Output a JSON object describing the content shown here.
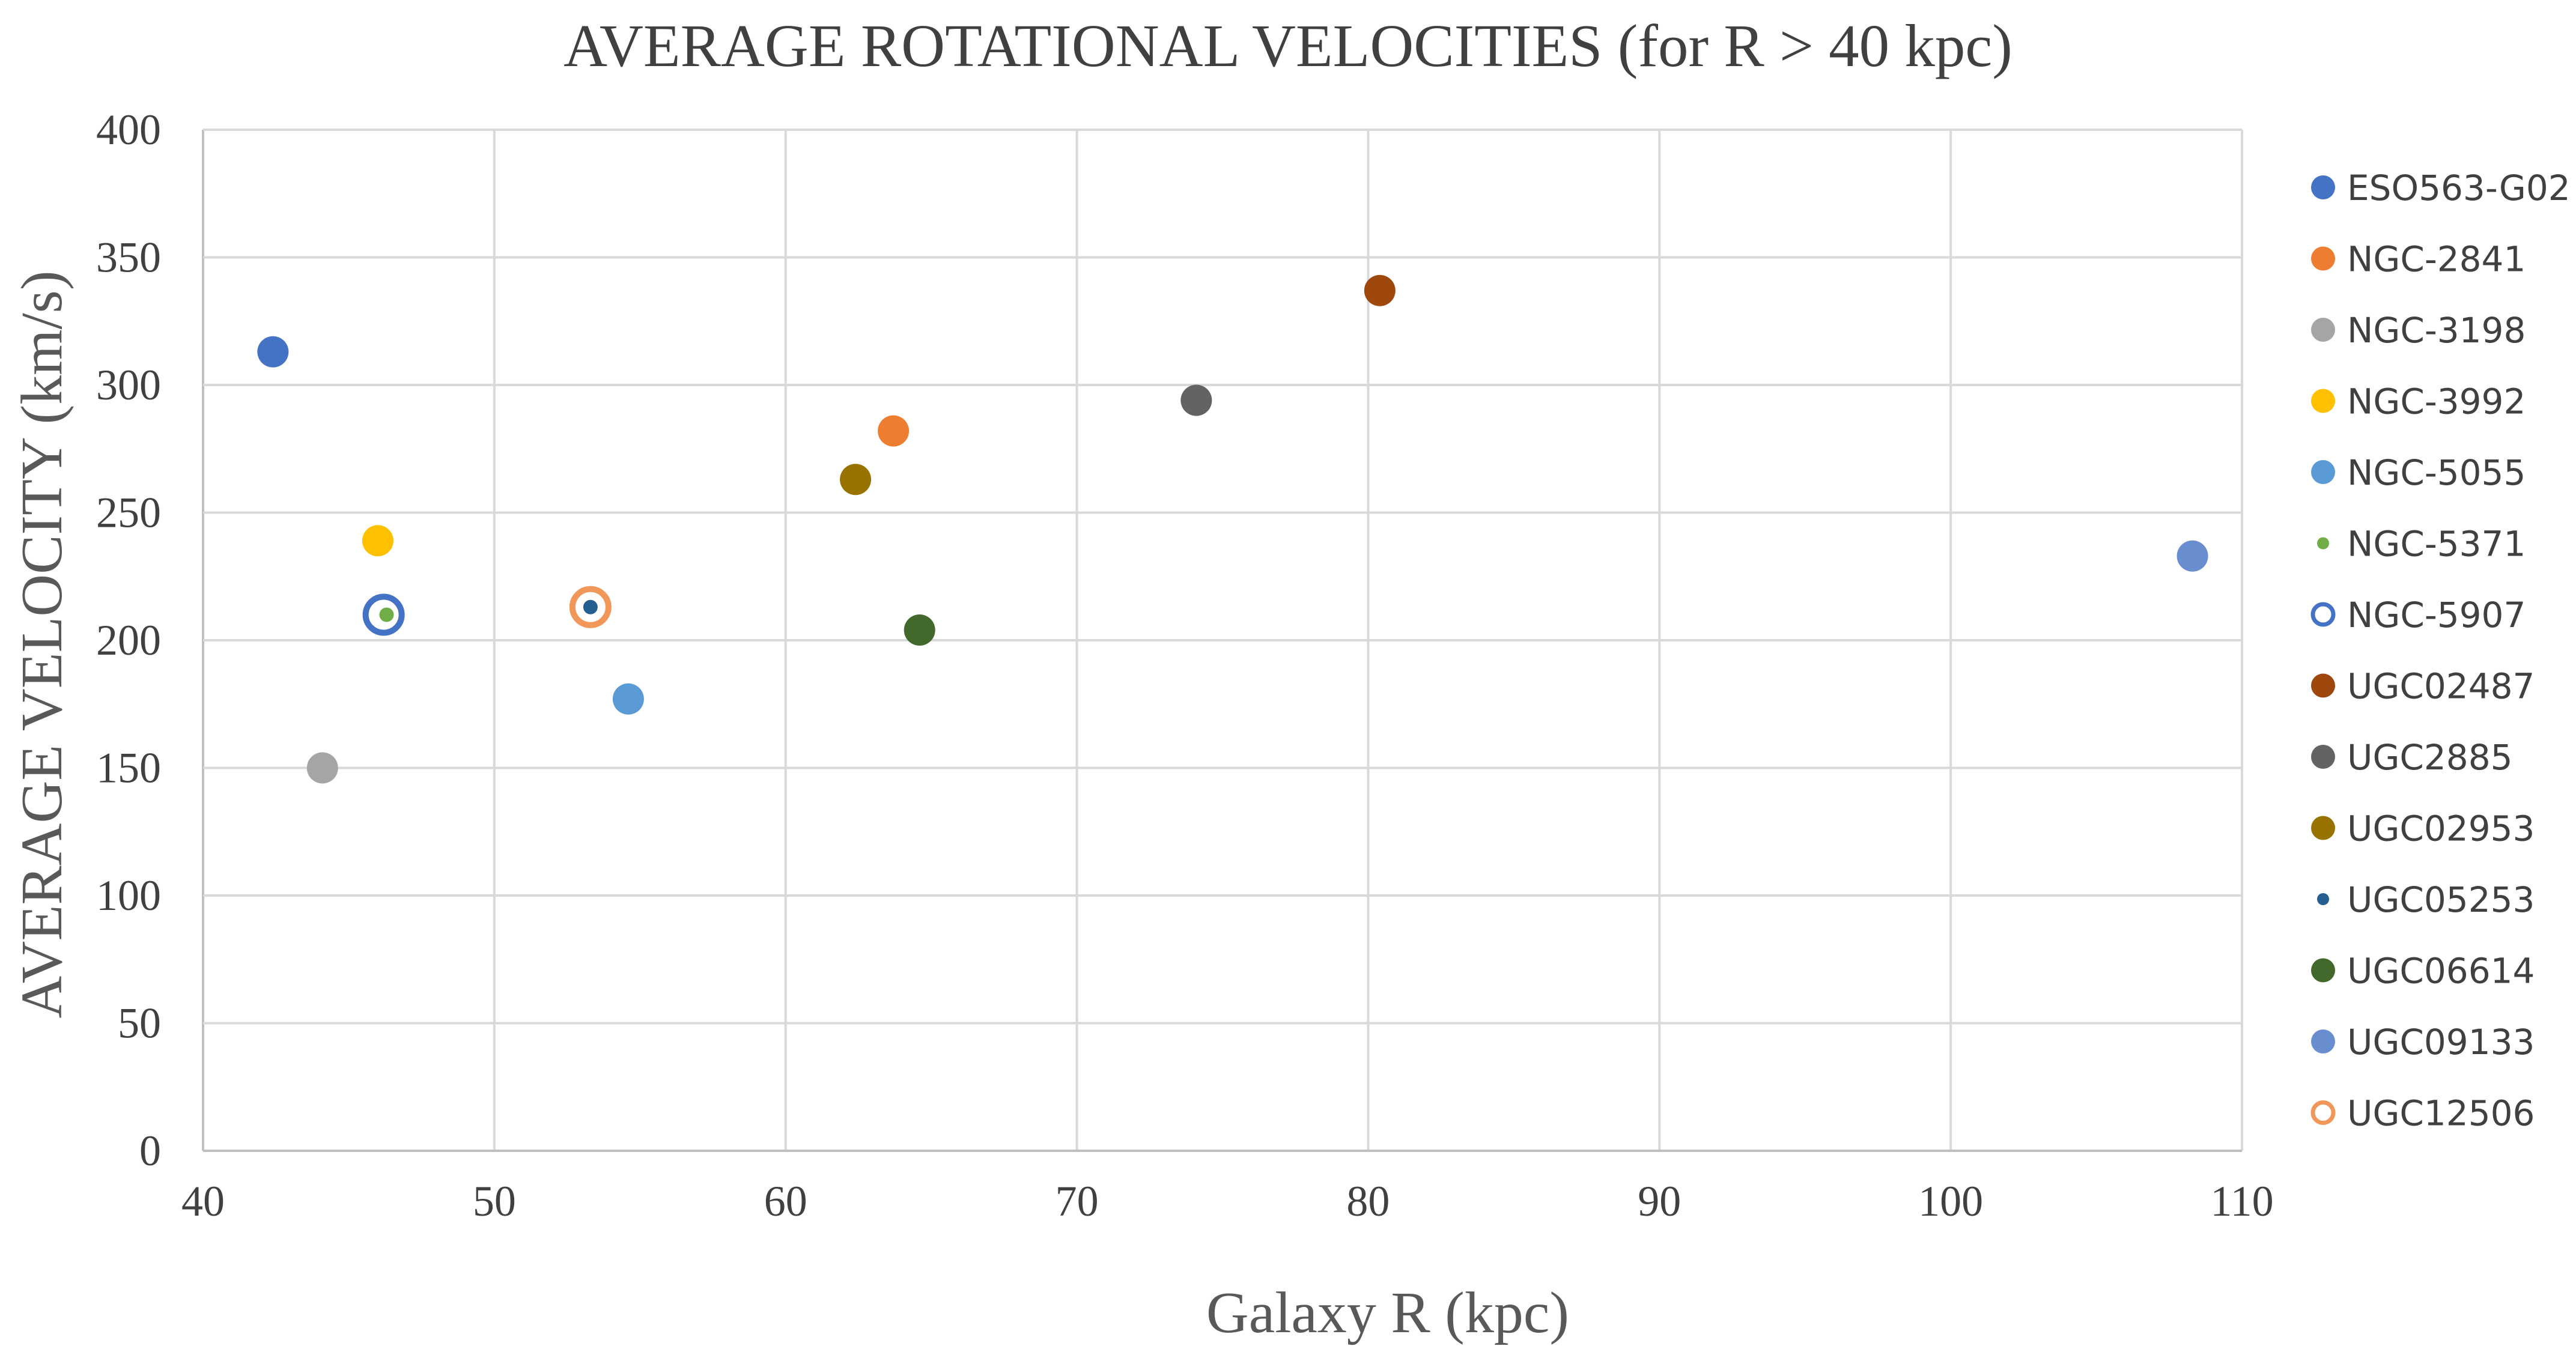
{
  "chart_data": {
    "type": "scatter",
    "title": "AVERAGE ROTATIONAL VELOCITIES (for R > 40 kpc)",
    "xlabel": "Galaxy R (kpc)",
    "ylabel": "AVERAGE VELOCITY (km/s)",
    "xlim": [
      40,
      110
    ],
    "ylim": [
      0,
      400
    ],
    "xticks": [
      40,
      50,
      60,
      70,
      80,
      90,
      100,
      110
    ],
    "yticks": [
      0,
      50,
      100,
      150,
      200,
      250,
      300,
      350,
      400
    ],
    "grid": true,
    "legend_position": "right",
    "series": [
      {
        "name": "ESO563-G02",
        "x": 42.4,
        "y": 313,
        "color": "#4472C4",
        "marker": "filled",
        "marker_size": "large"
      },
      {
        "name": "NGC-2841",
        "x": 63.7,
        "y": 282,
        "color": "#ED7D31",
        "marker": "filled",
        "marker_size": "large"
      },
      {
        "name": "NGC-3198",
        "x": 44.1,
        "y": 150,
        "color": "#A5A5A5",
        "marker": "filled",
        "marker_size": "large"
      },
      {
        "name": "NGC-3992",
        "x": 46.0,
        "y": 239,
        "color": "#FFC000",
        "marker": "filled",
        "marker_size": "large"
      },
      {
        "name": "NGC-5055",
        "x": 54.6,
        "y": 177,
        "color": "#5B9BD5",
        "marker": "filled",
        "marker_size": "large"
      },
      {
        "name": "NGC-5371",
        "x": 46.3,
        "y": 210,
        "color": "#70AD47",
        "marker": "filled",
        "marker_size": "small"
      },
      {
        "name": "NGC-5907",
        "x": 46.2,
        "y": 210,
        "color": "#4472C4",
        "marker": "hollow",
        "marker_size": "xlarge"
      },
      {
        "name": "UGC02487",
        "x": 80.4,
        "y": 337,
        "color": "#9E480E",
        "marker": "filled",
        "marker_size": "large"
      },
      {
        "name": "UGC2885",
        "x": 74.1,
        "y": 294,
        "color": "#636363",
        "marker": "filled",
        "marker_size": "large"
      },
      {
        "name": "UGC02953",
        "x": 62.4,
        "y": 263,
        "color": "#997300",
        "marker": "filled",
        "marker_size": "large"
      },
      {
        "name": "UGC05253",
        "x": 53.3,
        "y": 213,
        "color": "#255E91",
        "marker": "filled",
        "marker_size": "small"
      },
      {
        "name": "UGC06614",
        "x": 64.6,
        "y": 204,
        "color": "#43682B",
        "marker": "filled",
        "marker_size": "large"
      },
      {
        "name": "UGC09133",
        "x": 108.3,
        "y": 233,
        "color": "#698ED0",
        "marker": "filled",
        "marker_size": "large"
      },
      {
        "name": "UGC12506",
        "x": 53.3,
        "y": 213,
        "color": "#F1975A",
        "marker": "hollow",
        "marker_size": "xlarge"
      }
    ]
  }
}
